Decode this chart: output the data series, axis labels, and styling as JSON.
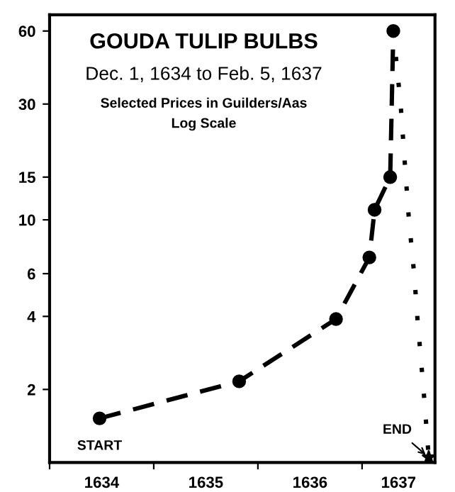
{
  "chart_data": {
    "type": "line",
    "title": "GOUDA TULIP BULBS",
    "subtitle": "Dec. 1, 1634 to Feb. 5, 1637",
    "annotations": [
      "Selected Prices in Guilders/Aas",
      "Log Scale",
      {
        "text": "START",
        "x": 1634.48,
        "y": 1.52
      },
      {
        "text": "END",
        "x": 1637.64,
        "y": 1.05
      }
    ],
    "series": [
      {
        "x": [
          1634.48,
          1635.82,
          1636.75,
          1637.07,
          1637.12,
          1637.27,
          1637.3
        ],
        "values": [
          1.52,
          2.16,
          3.9,
          7,
          11,
          15,
          60
        ],
        "color": "#000000",
        "marker": "circle",
        "line_style": "dashed"
      },
      {
        "x": [
          1637.3,
          1637.37,
          1637.42,
          1637.45,
          1637.5,
          1637.53,
          1637.59,
          1637.64
        ],
        "values": [
          60,
          30,
          15,
          10,
          6,
          4,
          2,
          1.05
        ],
        "color": "#000000",
        "marker": "none",
        "line_style": "dotted"
      },
      {
        "type": "scatter",
        "x": [
          1637.64
        ],
        "values": [
          1.05
        ],
        "color": "#000000",
        "marker": "star"
      }
    ],
    "log": true,
    "xlim": [
      1634,
      1637.7
    ],
    "ylim": [
      1,
      70
    ],
    "xticks": [
      {
        "value": 1634,
        "label": null
      },
      {
        "value": 1634.5,
        "label": "1634"
      },
      {
        "value": 1635,
        "label": null
      },
      {
        "value": 1635.5,
        "label": "1635"
      },
      {
        "value": 1636,
        "label": null
      },
      {
        "value": 1636.5,
        "label": "1636"
      },
      {
        "value": 1637,
        "label": null
      },
      {
        "value": 1637.35,
        "label": "1637"
      }
    ],
    "yticks": [
      2,
      4,
      6,
      10,
      15,
      30,
      60
    ],
    "grid": false,
    "legend": false
  }
}
